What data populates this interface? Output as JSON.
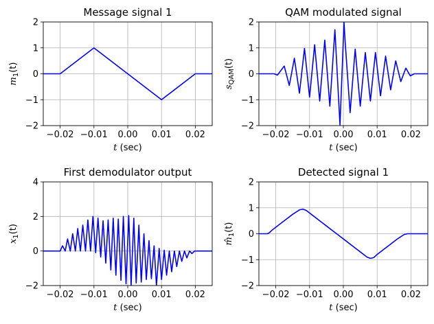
{
  "chart_data": [
    {
      "type": "line",
      "title": "Message signal 1",
      "xlabel_var": "t",
      "xlabel_unit": " (sec)",
      "ylabel_main": "m",
      "ylabel_sub": "1",
      "ylabel_arg": "(t)",
      "xlim": [
        -0.025,
        0.025
      ],
      "ylim": [
        -2,
        2
      ],
      "xticks": [
        -0.02,
        -0.01,
        0.0,
        0.01,
        0.02
      ],
      "xtick_labels": [
        "−0.02",
        "−0.01",
        "0.00",
        "0.01",
        "0.02"
      ],
      "yticks": [
        -2,
        -1,
        0,
        1,
        2
      ],
      "ytick_labels": [
        "−2",
        "−1",
        "0",
        "1",
        "2"
      ],
      "grid": true,
      "color": "#0000ff",
      "series": [
        {
          "x": [
            -0.025,
            -0.02,
            -0.01,
            0.01,
            0.02,
            0.025
          ],
          "y": [
            0,
            0,
            1,
            -1,
            0,
            0
          ]
        }
      ]
    },
    {
      "type": "line",
      "title": "QAM modulated signal",
      "xlabel_var": "t",
      "xlabel_unit": " (sec)",
      "ylabel_main": "s",
      "ylabel_sub": "QAM",
      "ylabel_arg": "(t)",
      "xlim": [
        -0.025,
        0.025
      ],
      "ylim": [
        -2,
        2
      ],
      "xticks": [
        -0.02,
        -0.01,
        0.0,
        0.01,
        0.02
      ],
      "xtick_labels": [
        "−0.02",
        "−0.01",
        "0.00",
        "0.01",
        "0.02"
      ],
      "yticks": [
        -2,
        -1,
        0,
        1,
        2
      ],
      "ytick_labels": [
        "−2",
        "−1",
        "0",
        "1",
        "2"
      ],
      "grid": true,
      "color": "#0000ff",
      "series": [
        {
          "x": [
            -0.025,
            -0.0205,
            -0.0195,
            -0.0175,
            -0.016,
            -0.0145,
            -0.013,
            -0.0115,
            -0.01,
            -0.0085,
            -0.007,
            -0.0055,
            -0.004,
            -0.0025,
            -0.001,
            0.0002,
            0.0005,
            0.002,
            0.0035,
            0.005,
            0.0065,
            0.008,
            0.0095,
            0.011,
            0.0125,
            0.014,
            0.0155,
            0.017,
            0.0185,
            0.0198,
            0.021,
            0.025
          ],
          "y": [
            0,
            0,
            -0.05,
            0.3,
            -0.45,
            0.6,
            -0.75,
            0.98,
            -0.9,
            1.12,
            -1.05,
            1.3,
            -1.25,
            1.7,
            -1.97,
            1.98,
            1.3,
            -1.5,
            0.95,
            -1.25,
            0.82,
            -1.05,
            0.82,
            -0.85,
            0.68,
            -0.62,
            0.5,
            -0.3,
            0.22,
            -0.08,
            0,
            0
          ]
        }
      ]
    },
    {
      "type": "line",
      "title": "First demodulator output",
      "xlabel_var": "t",
      "xlabel_unit": " (sec)",
      "ylabel_main": "x",
      "ylabel_sub": "1",
      "ylabel_arg": "(t)",
      "xlim": [
        -0.025,
        0.025
      ],
      "ylim": [
        -2,
        4
      ],
      "xticks": [
        -0.02,
        -0.01,
        0.0,
        0.01,
        0.02
      ],
      "xtick_labels": [
        "−0.02",
        "−0.01",
        "0.00",
        "0.01",
        "0.02"
      ],
      "yticks": [
        -2,
        0,
        2,
        4
      ],
      "ytick_labels": [
        "−2",
        "0",
        "2",
        "4"
      ],
      "grid": true,
      "color": "#0000ff",
      "series": [
        {
          "x": [
            -0.025,
            -0.02,
            -0.0193,
            -0.0185,
            -0.0178,
            -0.017,
            -0.0163,
            -0.0155,
            -0.0148,
            -0.014,
            -0.0133,
            -0.0125,
            -0.0118,
            -0.011,
            -0.0103,
            -0.0095,
            -0.0088,
            -0.008,
            -0.0073,
            -0.0065,
            -0.0058,
            -0.005,
            -0.0043,
            -0.0035,
            -0.0028,
            -0.002,
            -0.0013,
            -0.0005,
            0.0003,
            0.001,
            0.0018,
            0.0025,
            0.0033,
            0.004,
            0.0048,
            0.0055,
            0.0063,
            0.007,
            0.0078,
            0.0085,
            0.0093,
            0.01,
            0.0108,
            0.0115,
            0.0123,
            0.013,
            0.0138,
            0.0145,
            0.0153,
            0.016,
            0.0168,
            0.0175,
            0.0183,
            0.019,
            0.0198,
            0.021,
            0.025
          ],
          "y": [
            0,
            0,
            0.3,
            0,
            0.7,
            0,
            1.0,
            0,
            1.3,
            0,
            1.5,
            0,
            1.8,
            0,
            2.0,
            -0.1,
            1.9,
            -0.35,
            1.75,
            -0.7,
            1.8,
            -1.1,
            1.9,
            -1.4,
            1.85,
            -1.7,
            2.0,
            -1.9,
            2.05,
            -2.0,
            1.9,
            -1.85,
            1.5,
            -1.8,
            1.0,
            -1.65,
            0.6,
            -1.6,
            0.3,
            -2.0,
            0.15,
            -1.65,
            0.05,
            -1.4,
            0.0,
            -1.2,
            0.0,
            -0.9,
            0.0,
            -0.6,
            0.0,
            -0.4,
            0.0,
            -0.15,
            0.0,
            0,
            0
          ]
        }
      ]
    },
    {
      "type": "line",
      "title": "Detected signal 1",
      "xlabel_var": "t",
      "xlabel_unit": " (sec)",
      "ylabel_main": "m̂",
      "ylabel_sub": "1",
      "ylabel_arg": "(t)",
      "xlim": [
        -0.025,
        0.025
      ],
      "ylim": [
        -2,
        2
      ],
      "xticks": [
        -0.02,
        -0.01,
        0.0,
        0.01,
        0.02
      ],
      "xtick_labels": [
        "−0.02",
        "−0.01",
        "0.00",
        "0.01",
        "0.02"
      ],
      "yticks": [
        -2,
        -1,
        0,
        1,
        2
      ],
      "ytick_labels": [
        "−2",
        "−1",
        "0",
        "1",
        "2"
      ],
      "grid": true,
      "color": "#0000ff",
      "series": [
        {
          "x": [
            -0.025,
            -0.0225,
            -0.022,
            -0.021,
            -0.019,
            -0.017,
            -0.015,
            -0.013,
            -0.012,
            -0.011,
            -0.01,
            -0.009,
            -0.007,
            -0.005,
            -0.003,
            -0.001,
            0.001,
            0.003,
            0.005,
            0.007,
            0.008,
            0.009,
            0.01,
            0.012,
            0.014,
            0.016,
            0.018,
            0.019,
            0.02,
            0.025
          ],
          "y": [
            0,
            0,
            0.03,
            0.15,
            0.35,
            0.55,
            0.75,
            0.92,
            0.95,
            0.9,
            0.8,
            0.7,
            0.5,
            0.3,
            0.1,
            -0.1,
            -0.3,
            -0.5,
            -0.7,
            -0.9,
            -0.95,
            -0.92,
            -0.8,
            -0.6,
            -0.4,
            -0.2,
            -0.03,
            0,
            0,
            0
          ]
        }
      ]
    }
  ]
}
